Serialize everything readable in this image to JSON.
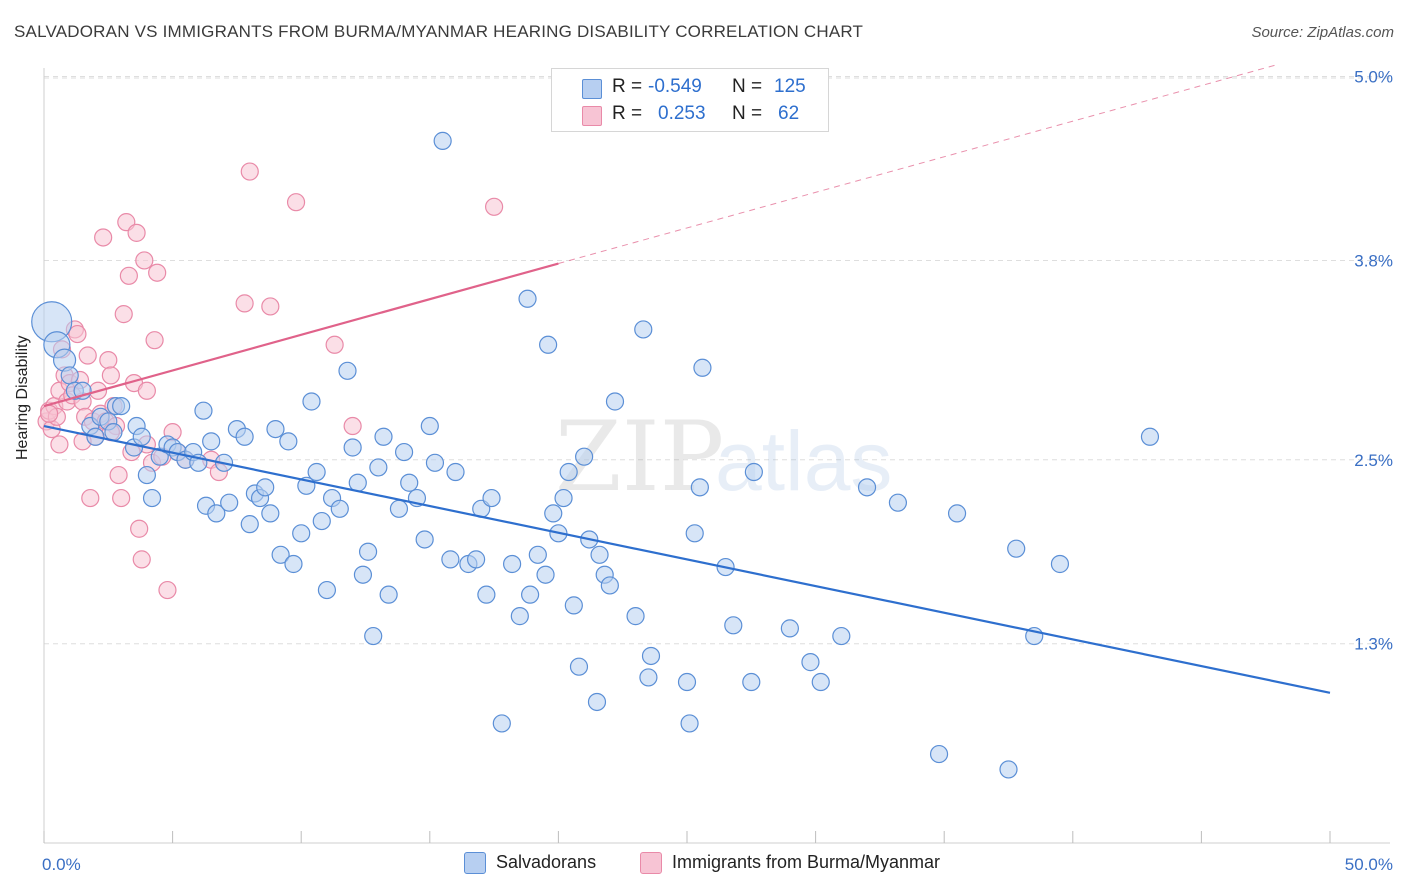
{
  "header": {
    "title": "SALVADORAN VS IMMIGRANTS FROM BURMA/MYANMAR HEARING DISABILITY CORRELATION CHART",
    "source": "Source: ZipAtlas.com"
  },
  "watermark": {
    "zip": "ZIP",
    "atlas": "atlas"
  },
  "legend": {
    "rows": [
      {
        "r_label": "R =",
        "r_value": "-0.549",
        "n_label": "N =",
        "n_value": "125"
      },
      {
        "r_label": "R =",
        "r_value": "0.253",
        "n_label": "N =",
        "n_value": "62"
      }
    ]
  },
  "colors": {
    "blue": "#5b8fd6",
    "blue_fill": "#b7cff1",
    "blue_line": "#2e6fce",
    "pink": "#e98aa8",
    "pink_fill": "#f7c4d4",
    "pink_line": "#e0628a",
    "tick_text": "#3a6fc4",
    "grid": "#dedede"
  },
  "chart_data": {
    "type": "scatter",
    "title": "SALVADORAN VS IMMIGRANTS FROM BURMA/MYANMAR HEARING DISABILITY CORRELATION CHART",
    "xlabel": "",
    "ylabel": "Hearing Disability",
    "xlim": [
      0,
      50
    ],
    "ylim": [
      0,
      5.2
    ],
    "x_tick_labels": [
      "0.0%",
      "50.0%"
    ],
    "y_ticks": [
      1.3,
      2.5,
      3.8,
      5.0
    ],
    "y_tick_labels": [
      "1.3%",
      "2.5%",
      "3.8%",
      "5.0%"
    ],
    "grid": true,
    "legend_position": "bottom",
    "series": [
      {
        "name": "Salvadorans",
        "color": "#5b8fd6",
        "r": -0.549,
        "n": 125,
        "trend": {
          "x": [
            0,
            50
          ],
          "y": [
            2.72,
            0.98
          ]
        },
        "points": [
          [
            0.3,
            3.4
          ],
          [
            0.5,
            3.25
          ],
          [
            0.8,
            3.15
          ],
          [
            1.0,
            3.05
          ],
          [
            1.2,
            2.95
          ],
          [
            1.5,
            2.95
          ],
          [
            1.8,
            2.72
          ],
          [
            2.0,
            2.65
          ],
          [
            2.2,
            2.78
          ],
          [
            2.5,
            2.75
          ],
          [
            2.8,
            2.85
          ],
          [
            3.0,
            2.85
          ],
          [
            2.7,
            2.68
          ],
          [
            3.5,
            2.58
          ],
          [
            3.6,
            2.72
          ],
          [
            3.8,
            2.65
          ],
          [
            4.0,
            2.4
          ],
          [
            4.2,
            2.25
          ],
          [
            4.5,
            2.52
          ],
          [
            4.8,
            2.6
          ],
          [
            5.0,
            2.58
          ],
          [
            5.2,
            2.55
          ],
          [
            5.5,
            2.5
          ],
          [
            5.8,
            2.55
          ],
          [
            6.0,
            2.48
          ],
          [
            6.2,
            2.82
          ],
          [
            6.3,
            2.2
          ],
          [
            6.5,
            2.62
          ],
          [
            6.7,
            2.15
          ],
          [
            7.0,
            2.48
          ],
          [
            7.2,
            2.22
          ],
          [
            7.5,
            2.7
          ],
          [
            7.8,
            2.65
          ],
          [
            8.0,
            2.08
          ],
          [
            8.2,
            2.28
          ],
          [
            8.4,
            2.25
          ],
          [
            8.6,
            2.32
          ],
          [
            8.8,
            2.15
          ],
          [
            9.0,
            2.7
          ],
          [
            9.2,
            1.88
          ],
          [
            9.5,
            2.62
          ],
          [
            9.7,
            1.82
          ],
          [
            10.0,
            2.02
          ],
          [
            10.2,
            2.33
          ],
          [
            10.4,
            2.88
          ],
          [
            10.6,
            2.42
          ],
          [
            10.8,
            2.1
          ],
          [
            11.0,
            1.65
          ],
          [
            11.2,
            2.25
          ],
          [
            11.5,
            2.18
          ],
          [
            11.8,
            3.08
          ],
          [
            12.0,
            2.58
          ],
          [
            12.2,
            2.35
          ],
          [
            12.4,
            1.75
          ],
          [
            12.6,
            1.9
          ],
          [
            12.8,
            1.35
          ],
          [
            13.0,
            2.45
          ],
          [
            13.2,
            2.65
          ],
          [
            13.4,
            1.62
          ],
          [
            13.8,
            2.18
          ],
          [
            14.0,
            2.55
          ],
          [
            14.2,
            2.35
          ],
          [
            14.5,
            2.25
          ],
          [
            14.8,
            1.98
          ],
          [
            15.0,
            2.72
          ],
          [
            15.2,
            2.48
          ],
          [
            15.5,
            4.58
          ],
          [
            15.8,
            1.85
          ],
          [
            16.0,
            2.42
          ],
          [
            16.5,
            1.82
          ],
          [
            16.8,
            1.85
          ],
          [
            17.0,
            2.18
          ],
          [
            17.2,
            1.62
          ],
          [
            17.4,
            2.25
          ],
          [
            17.8,
            0.78
          ],
          [
            18.2,
            1.82
          ],
          [
            18.5,
            1.48
          ],
          [
            18.8,
            3.55
          ],
          [
            18.9,
            1.62
          ],
          [
            19.2,
            1.88
          ],
          [
            19.5,
            1.75
          ],
          [
            19.6,
            3.25
          ],
          [
            19.8,
            2.15
          ],
          [
            20.0,
            2.02
          ],
          [
            20.2,
            2.25
          ],
          [
            20.4,
            2.42
          ],
          [
            20.6,
            1.55
          ],
          [
            20.8,
            1.15
          ],
          [
            21.0,
            2.52
          ],
          [
            21.2,
            1.98
          ],
          [
            21.5,
            0.92
          ],
          [
            21.6,
            1.88
          ],
          [
            21.8,
            1.75
          ],
          [
            22.0,
            1.68
          ],
          [
            22.2,
            2.88
          ],
          [
            23.0,
            1.48
          ],
          [
            23.3,
            3.35
          ],
          [
            23.5,
            1.08
          ],
          [
            23.6,
            1.22
          ],
          [
            25.0,
            1.05
          ],
          [
            25.1,
            0.78
          ],
          [
            25.3,
            2.02
          ],
          [
            25.5,
            2.32
          ],
          [
            25.6,
            3.1
          ],
          [
            26.5,
            1.8
          ],
          [
            26.8,
            1.42
          ],
          [
            27.5,
            1.05
          ],
          [
            27.6,
            2.42
          ],
          [
            29.0,
            1.4
          ],
          [
            29.8,
            1.18
          ],
          [
            30.2,
            1.05
          ],
          [
            31.0,
            1.35
          ],
          [
            32.0,
            2.32
          ],
          [
            33.2,
            2.22
          ],
          [
            34.8,
            0.58
          ],
          [
            35.5,
            2.15
          ],
          [
            37.5,
            0.48
          ],
          [
            37.8,
            1.92
          ],
          [
            38.5,
            1.35
          ],
          [
            39.5,
            1.82
          ],
          [
            43.0,
            2.65
          ]
        ]
      },
      {
        "name": "Immigrants from Burma/Myanmar",
        "color": "#e98aa8",
        "r": 0.253,
        "n": 62,
        "trend": {
          "x": [
            0,
            20
          ],
          "y": [
            2.85,
            3.78
          ]
        },
        "trend_extension": {
          "x": [
            20,
            48
          ],
          "y": [
            3.78,
            5.08
          ]
        },
        "points": [
          [
            0.1,
            2.75
          ],
          [
            0.2,
            2.82
          ],
          [
            0.3,
            2.7
          ],
          [
            0.4,
            2.85
          ],
          [
            0.5,
            2.78
          ],
          [
            0.6,
            2.95
          ],
          [
            0.7,
            3.22
          ],
          [
            0.8,
            3.05
          ],
          [
            0.9,
            2.88
          ],
          [
            1.0,
            3.0
          ],
          [
            1.1,
            2.92
          ],
          [
            1.2,
            3.35
          ],
          [
            1.3,
            3.32
          ],
          [
            1.4,
            3.02
          ],
          [
            1.5,
            2.88
          ],
          [
            1.6,
            2.78
          ],
          [
            1.7,
            3.18
          ],
          [
            1.8,
            2.25
          ],
          [
            1.9,
            2.75
          ],
          [
            2.0,
            2.65
          ],
          [
            2.1,
            2.95
          ],
          [
            2.2,
            2.8
          ],
          [
            2.3,
            3.95
          ],
          [
            2.4,
            2.75
          ],
          [
            2.5,
            3.15
          ],
          [
            2.6,
            3.05
          ],
          [
            2.7,
            2.85
          ],
          [
            2.8,
            2.72
          ],
          [
            2.9,
            2.4
          ],
          [
            3.0,
            2.25
          ],
          [
            3.1,
            3.45
          ],
          [
            3.2,
            4.05
          ],
          [
            3.3,
            3.7
          ],
          [
            3.4,
            2.55
          ],
          [
            3.5,
            3.0
          ],
          [
            3.6,
            3.98
          ],
          [
            3.7,
            2.05
          ],
          [
            3.8,
            1.85
          ],
          [
            3.9,
            3.8
          ],
          [
            4.0,
            2.6
          ],
          [
            4.2,
            2.48
          ],
          [
            4.3,
            3.28
          ],
          [
            4.4,
            3.72
          ],
          [
            4.6,
            2.52
          ],
          [
            4.8,
            1.65
          ],
          [
            5.0,
            2.68
          ],
          [
            5.2,
            2.55
          ],
          [
            5.5,
            2.5
          ],
          [
            6.5,
            2.5
          ],
          [
            6.8,
            2.42
          ],
          [
            7.8,
            3.52
          ],
          [
            8.0,
            4.38
          ],
          [
            8.8,
            3.5
          ],
          [
            9.8,
            4.18
          ],
          [
            11.3,
            3.25
          ],
          [
            12.0,
            2.72
          ],
          [
            17.5,
            4.15
          ],
          [
            0.2,
            2.8
          ],
          [
            0.6,
            2.6
          ],
          [
            1.5,
            2.62
          ],
          [
            2.6,
            2.68
          ],
          [
            4.0,
            2.95
          ]
        ]
      }
    ]
  },
  "bottom_legend": {
    "items": [
      "Salvadorans",
      "Immigrants from Burma/Myanmar"
    ]
  }
}
